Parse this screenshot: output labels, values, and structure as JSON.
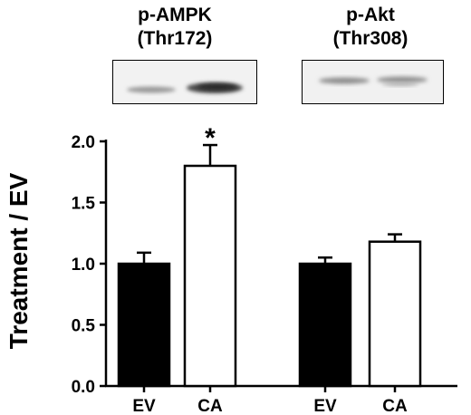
{
  "blots": [
    {
      "title_line1": "p-AMPK",
      "title_line2": "(Thr172)",
      "band_colors": [
        "#9a9a9a",
        "#4a4a4a",
        "#a8a8a8"
      ]
    },
    {
      "title_line1": "p-Akt",
      "title_line2": "(Thr308)",
      "band_colors": [
        "#8c8c8c",
        "#8f8f8f",
        "#b0b0b0"
      ]
    }
  ],
  "chart_data": {
    "type": "bar",
    "ylabel": "Treatment / EV",
    "ylim": [
      0.0,
      2.0
    ],
    "yticks": [
      "0.0",
      "0.5",
      "1.0",
      "1.5",
      "2.0"
    ],
    "groups": [
      {
        "name": "p-AMPK (Thr172)",
        "categories": [
          "EV",
          "CA"
        ],
        "values": [
          1.0,
          1.8
        ],
        "errors": [
          0.09,
          0.17
        ],
        "annotations": [
          "",
          "*"
        ]
      },
      {
        "name": "p-Akt (Thr308)",
        "categories": [
          "EV",
          "CA"
        ],
        "values": [
          1.0,
          1.18
        ],
        "errors": [
          0.05,
          0.06
        ],
        "annotations": [
          "",
          ""
        ]
      }
    ],
    "bar_fills": [
      "#000000",
      "#ffffff"
    ],
    "grid": false
  }
}
